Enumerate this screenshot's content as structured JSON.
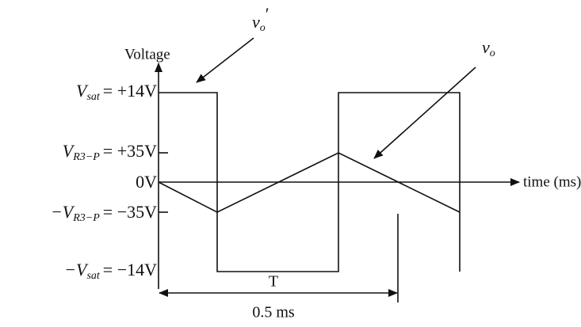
{
  "axes": {
    "y_label": "Voltage",
    "x_label": "time (ms)"
  },
  "levels": [
    {
      "symbol": "V",
      "sub": "sat",
      "value": "= +14V"
    },
    {
      "symbol": "V",
      "sub": "R3−P",
      "value": "= +35V"
    },
    {
      "value": "0V"
    },
    {
      "symbol": "−V",
      "sub": "R3−P",
      "value": "= −35V"
    },
    {
      "symbol": "−V",
      "sub": "sat",
      "value": "= −14V"
    }
  ],
  "period": {
    "symbol": "T",
    "duration": "0.5 ms"
  },
  "signals": [
    {
      "symbol": "v",
      "sub": "o",
      "prime": "′"
    },
    {
      "symbol": "v",
      "sub": "o"
    }
  ]
}
